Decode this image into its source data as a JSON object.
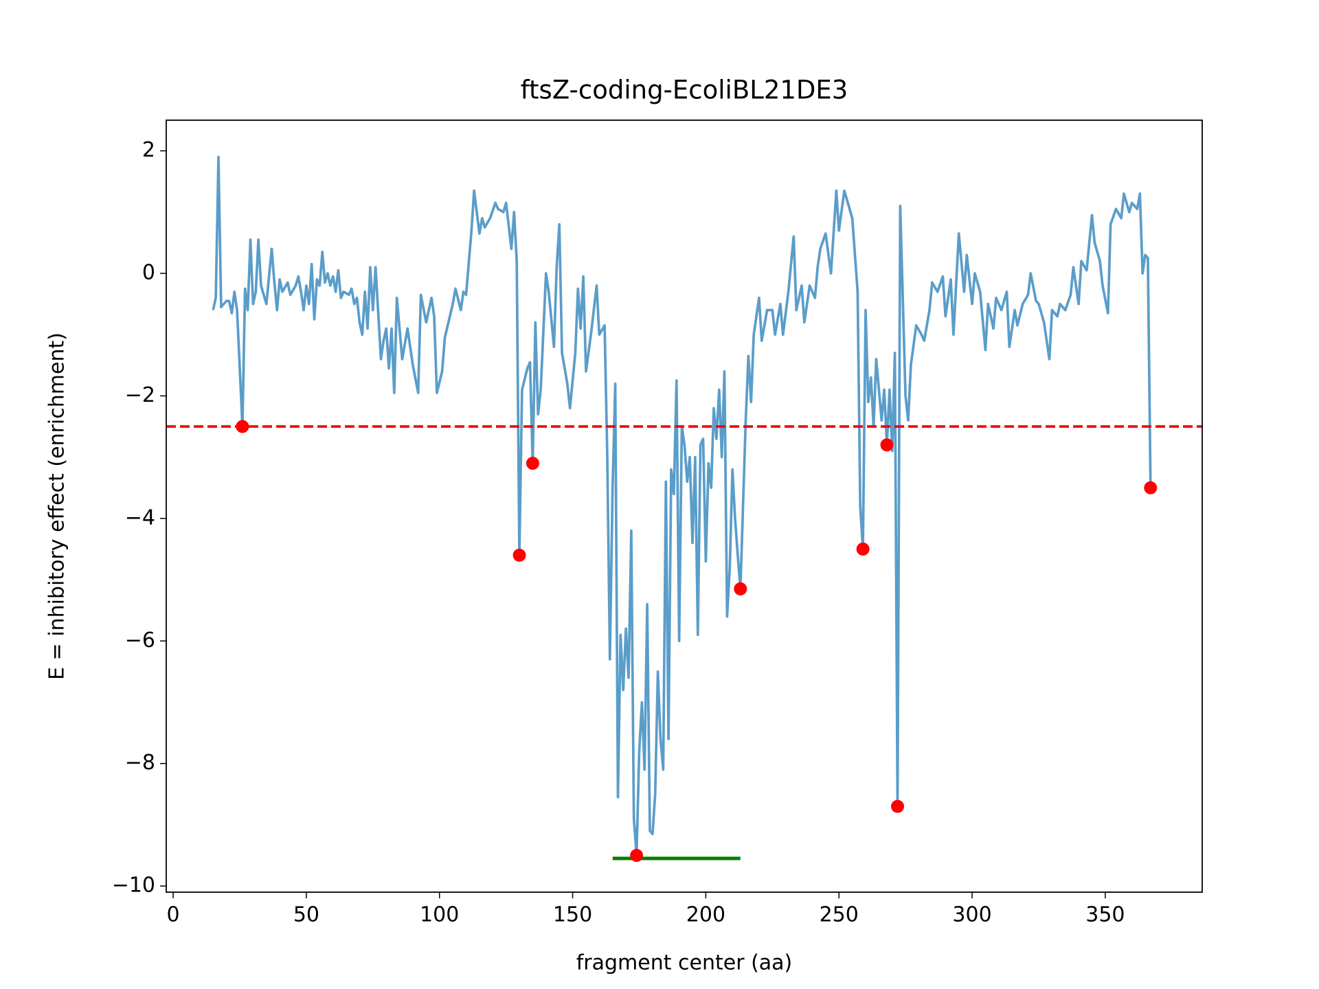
{
  "chart_data": {
    "type": "line",
    "title": "ftsZ-coding-EcoliBL21DE3",
    "xlabel": "fragment center (aa)",
    "ylabel": "E = inhibitory effect (enrichment)",
    "xlim": [
      -2.6,
      386.4
    ],
    "ylim": [
      -10.1,
      2.5
    ],
    "xticks": [
      0,
      50,
      100,
      150,
      200,
      250,
      300,
      350
    ],
    "yticks": [
      2,
      0,
      {
        "value": -2,
        "label": "−2"
      },
      {
        "value": -4,
        "label": "−4"
      },
      {
        "value": -6,
        "label": "−6"
      },
      {
        "value": -8,
        "label": "−8"
      },
      {
        "value": -10,
        "label": "−10"
      }
    ],
    "series": [
      {
        "color": "#5b9dc9",
        "x": [
          15,
          16,
          17,
          18,
          20,
          21,
          22,
          23,
          24,
          26,
          27,
          28,
          29,
          30,
          31,
          32,
          33,
          35,
          36,
          37,
          38,
          39,
          40,
          41,
          43,
          44,
          46,
          47,
          48,
          49,
          50,
          51,
          52,
          53,
          54,
          55,
          56,
          57,
          58,
          59,
          60,
          61,
          62,
          63,
          64,
          66,
          67,
          68,
          69,
          70,
          71,
          72,
          73,
          74,
          75,
          76,
          78,
          79,
          80,
          81,
          82,
          83,
          84,
          86,
          88,
          90,
          92,
          93,
          95,
          97,
          98,
          99,
          101,
          102,
          105,
          106,
          108,
          109,
          110,
          112,
          113,
          115,
          116,
          117,
          119,
          121,
          122,
          124,
          125,
          127,
          128,
          129,
          130,
          131,
          133,
          134,
          135,
          136,
          137,
          138,
          140,
          141,
          143,
          144,
          145,
          146,
          148,
          149,
          151,
          152,
          153,
          154,
          155,
          157,
          159,
          160,
          162,
          163,
          164,
          165,
          166,
          167,
          168,
          169,
          170,
          171,
          172,
          173,
          174,
          175,
          176,
          177,
          178,
          179,
          180,
          181,
          182,
          183,
          184,
          185,
          186,
          187,
          188,
          189,
          190,
          191,
          192,
          193,
          194,
          195,
          196,
          197,
          198,
          199,
          200,
          201,
          202,
          203,
          204,
          205,
          206,
          207,
          208,
          209,
          210,
          211,
          212,
          213,
          215,
          216,
          217,
          218,
          220,
          221,
          223,
          225,
          226,
          228,
          229,
          231,
          233,
          234,
          236,
          237,
          239,
          241,
          242,
          243,
          245,
          247,
          249,
          250,
          252,
          253,
          255,
          257,
          258,
          259,
          260,
          261,
          262,
          263,
          264,
          266,
          267,
          268,
          269,
          270,
          271,
          272,
          273,
          275,
          276,
          277,
          279,
          281,
          282,
          284,
          285,
          287,
          289,
          290,
          292,
          293,
          295,
          297,
          298,
          300,
          301,
          303,
          305,
          306,
          308,
          309,
          311,
          313,
          314,
          316,
          317,
          319,
          321,
          322,
          324,
          325,
          327,
          329,
          330,
          332,
          333,
          335,
          337,
          338,
          340,
          341,
          343,
          345,
          346,
          348,
          349,
          351,
          352,
          354,
          356,
          357,
          359,
          360,
          362,
          363,
          364,
          365,
          366,
          367
        ],
        "values": [
          -0.6,
          -0.4,
          1.9,
          -0.55,
          -0.45,
          -0.45,
          -0.65,
          -0.3,
          -0.6,
          -2.5,
          -0.25,
          -0.6,
          0.55,
          -0.5,
          -0.3,
          0.55,
          -0.2,
          -0.5,
          -0.05,
          0.4,
          -0.15,
          -0.6,
          -0.1,
          -0.3,
          -0.15,
          -0.35,
          -0.2,
          -0.05,
          -0.3,
          -0.6,
          -0.2,
          -0.5,
          0.15,
          -0.75,
          -0.1,
          -0.2,
          0.35,
          -0.15,
          0,
          -0.2,
          -0.05,
          -0.3,
          0.05,
          -0.4,
          -0.3,
          -0.35,
          -0.25,
          -0.5,
          -0.4,
          -0.8,
          -1.0,
          -0.3,
          -0.9,
          0.1,
          -0.6,
          0.1,
          -1.4,
          -1.1,
          -0.9,
          -1.55,
          -0.9,
          -1.95,
          -0.4,
          -1.4,
          -0.9,
          -1.5,
          -1.95,
          -0.35,
          -0.8,
          -0.4,
          -0.7,
          -1.95,
          -1.6,
          -1.05,
          -0.5,
          -0.25,
          -0.6,
          -0.3,
          -0.35,
          0.7,
          1.35,
          0.65,
          0.9,
          0.75,
          0.9,
          1.15,
          1.05,
          1.0,
          1.15,
          0.4,
          1.0,
          0.2,
          -4.6,
          -1.9,
          -1.55,
          -1.45,
          -3.1,
          -0.8,
          -2.3,
          -1.9,
          0,
          -0.3,
          -1.2,
          0.1,
          0.8,
          -1.3,
          -1.8,
          -2.2,
          -1.3,
          -0.25,
          -0.9,
          -0.05,
          -1.6,
          -0.95,
          -0.2,
          -1.0,
          -0.85,
          -3.0,
          -6.3,
          -3.5,
          -1.8,
          -8.55,
          -5.9,
          -6.8,
          -5.8,
          -6.6,
          -4.2,
          -8.9,
          -9.5,
          -7.8,
          -7.0,
          -8.1,
          -5.4,
          -9.1,
          -9.15,
          -8.5,
          -6.5,
          -7.6,
          -8.1,
          -3.4,
          -7.6,
          -3.2,
          -3.6,
          -1.75,
          -6.0,
          -2.5,
          -2.8,
          -3.4,
          -3.0,
          -4.4,
          -3.0,
          -5.9,
          -2.8,
          -2.7,
          -4.7,
          -3.1,
          -3.5,
          -2.2,
          -2.7,
          -1.9,
          -3.0,
          -1.6,
          -5.6,
          -4.8,
          -3.2,
          -4.0,
          -4.6,
          -5.15,
          -2.4,
          -1.35,
          -2.1,
          -1.0,
          -0.4,
          -1.1,
          -0.6,
          -0.6,
          -1.0,
          -0.5,
          -1.0,
          -0.3,
          0.6,
          -0.6,
          -0.2,
          -0.8,
          -0.2,
          -0.4,
          0.1,
          0.4,
          0.65,
          0.0,
          1.35,
          0.7,
          1.35,
          1.2,
          0.9,
          -0.3,
          -3.8,
          -4.5,
          -0.6,
          -2.1,
          -1.7,
          -2.5,
          -1.4,
          -2.4,
          -1.9,
          -2.8,
          -1.9,
          -2.9,
          -1.3,
          -8.7,
          1.1,
          -2.0,
          -2.4,
          -1.5,
          -0.85,
          -1.0,
          -1.1,
          -0.6,
          -0.15,
          -0.3,
          -0.05,
          -0.7,
          -0.1,
          -1.0,
          0.65,
          -0.3,
          0.3,
          -0.5,
          0.0,
          -0.3,
          -1.25,
          -0.5,
          -0.9,
          -0.4,
          -0.6,
          -0.3,
          -1.2,
          -0.6,
          -0.85,
          -0.5,
          -0.35,
          0.0,
          -0.45,
          -0.5,
          -0.8,
          -1.4,
          -0.6,
          -0.7,
          -0.5,
          -0.6,
          -0.35,
          0.1,
          -0.5,
          0.2,
          0.05,
          0.95,
          0.5,
          0.2,
          -0.2,
          -0.65,
          0.8,
          1.05,
          0.9,
          1.3,
          1.0,
          1.15,
          1.05,
          1.3,
          0.0,
          0.3,
          0.25,
          -3.5
        ]
      },
      {
        "color": "red",
        "marker": "dot",
        "x": [
          26,
          130,
          135,
          174,
          213,
          259,
          268,
          272,
          367
        ],
        "values": [
          -2.5,
          -4.6,
          -3.1,
          -9.5,
          -5.15,
          -4.5,
          -2.8,
          -8.7,
          -3.5
        ]
      }
    ],
    "hlines": [
      {
        "y": -2.5,
        "color": "red",
        "dashed": true
      }
    ],
    "segments": [
      {
        "x": [
          165,
          213
        ],
        "y": -9.55,
        "color": "green"
      }
    ]
  }
}
